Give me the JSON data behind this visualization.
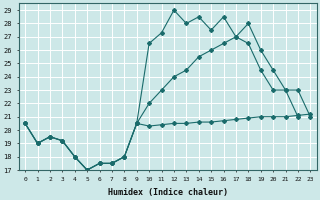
{
  "xlabel": "Humidex (Indice chaleur)",
  "xlim": [
    -0.5,
    23.5
  ],
  "ylim": [
    17,
    29.5
  ],
  "yticks": [
    17,
    18,
    19,
    20,
    21,
    22,
    23,
    24,
    25,
    26,
    27,
    28,
    29
  ],
  "xticks": [
    0,
    1,
    2,
    3,
    4,
    5,
    6,
    7,
    8,
    9,
    10,
    11,
    12,
    13,
    14,
    15,
    16,
    17,
    18,
    19,
    20,
    21,
    22,
    23
  ],
  "bg_color": "#cde8e8",
  "grid_color": "#ffffff",
  "line_color": "#1a6b6b",
  "line1_x": [
    0,
    1,
    2,
    3,
    4,
    5,
    6,
    7,
    8,
    9,
    10,
    11,
    12,
    13,
    14,
    15,
    16,
    17,
    18,
    19,
    20,
    21,
    22
  ],
  "line1_y": [
    20.5,
    19.0,
    19.5,
    19.2,
    18.0,
    17.0,
    17.5,
    17.5,
    18.0,
    20.5,
    26.5,
    27.3,
    29.0,
    28.0,
    28.5,
    27.5,
    28.5,
    27.0,
    26.5,
    24.5,
    23.0,
    23.0,
    21.0
  ],
  "line2_x": [
    0,
    1,
    2,
    3,
    4,
    5,
    6,
    7,
    8,
    9,
    10,
    11,
    12,
    13,
    14,
    15,
    16,
    17,
    18,
    19,
    20,
    21,
    22,
    23
  ],
  "line2_y": [
    20.5,
    19.0,
    19.5,
    19.2,
    18.0,
    17.0,
    17.5,
    17.5,
    18.0,
    20.5,
    22.0,
    23.0,
    24.0,
    24.5,
    25.5,
    26.0,
    26.5,
    27.0,
    28.0,
    26.0,
    24.5,
    23.0,
    23.0,
    21.0
  ],
  "line3_x": [
    0,
    1,
    2,
    3,
    4,
    5,
    6,
    7,
    8,
    9,
    10,
    11,
    12,
    13,
    14,
    15,
    16,
    17,
    18,
    19,
    20,
    21,
    22,
    23
  ],
  "line3_y": [
    20.5,
    19.0,
    19.5,
    19.2,
    18.0,
    17.0,
    17.5,
    17.5,
    18.0,
    20.5,
    20.3,
    20.4,
    20.5,
    20.5,
    20.6,
    20.6,
    20.7,
    20.8,
    20.9,
    21.0,
    21.0,
    21.0,
    21.1,
    21.2
  ]
}
